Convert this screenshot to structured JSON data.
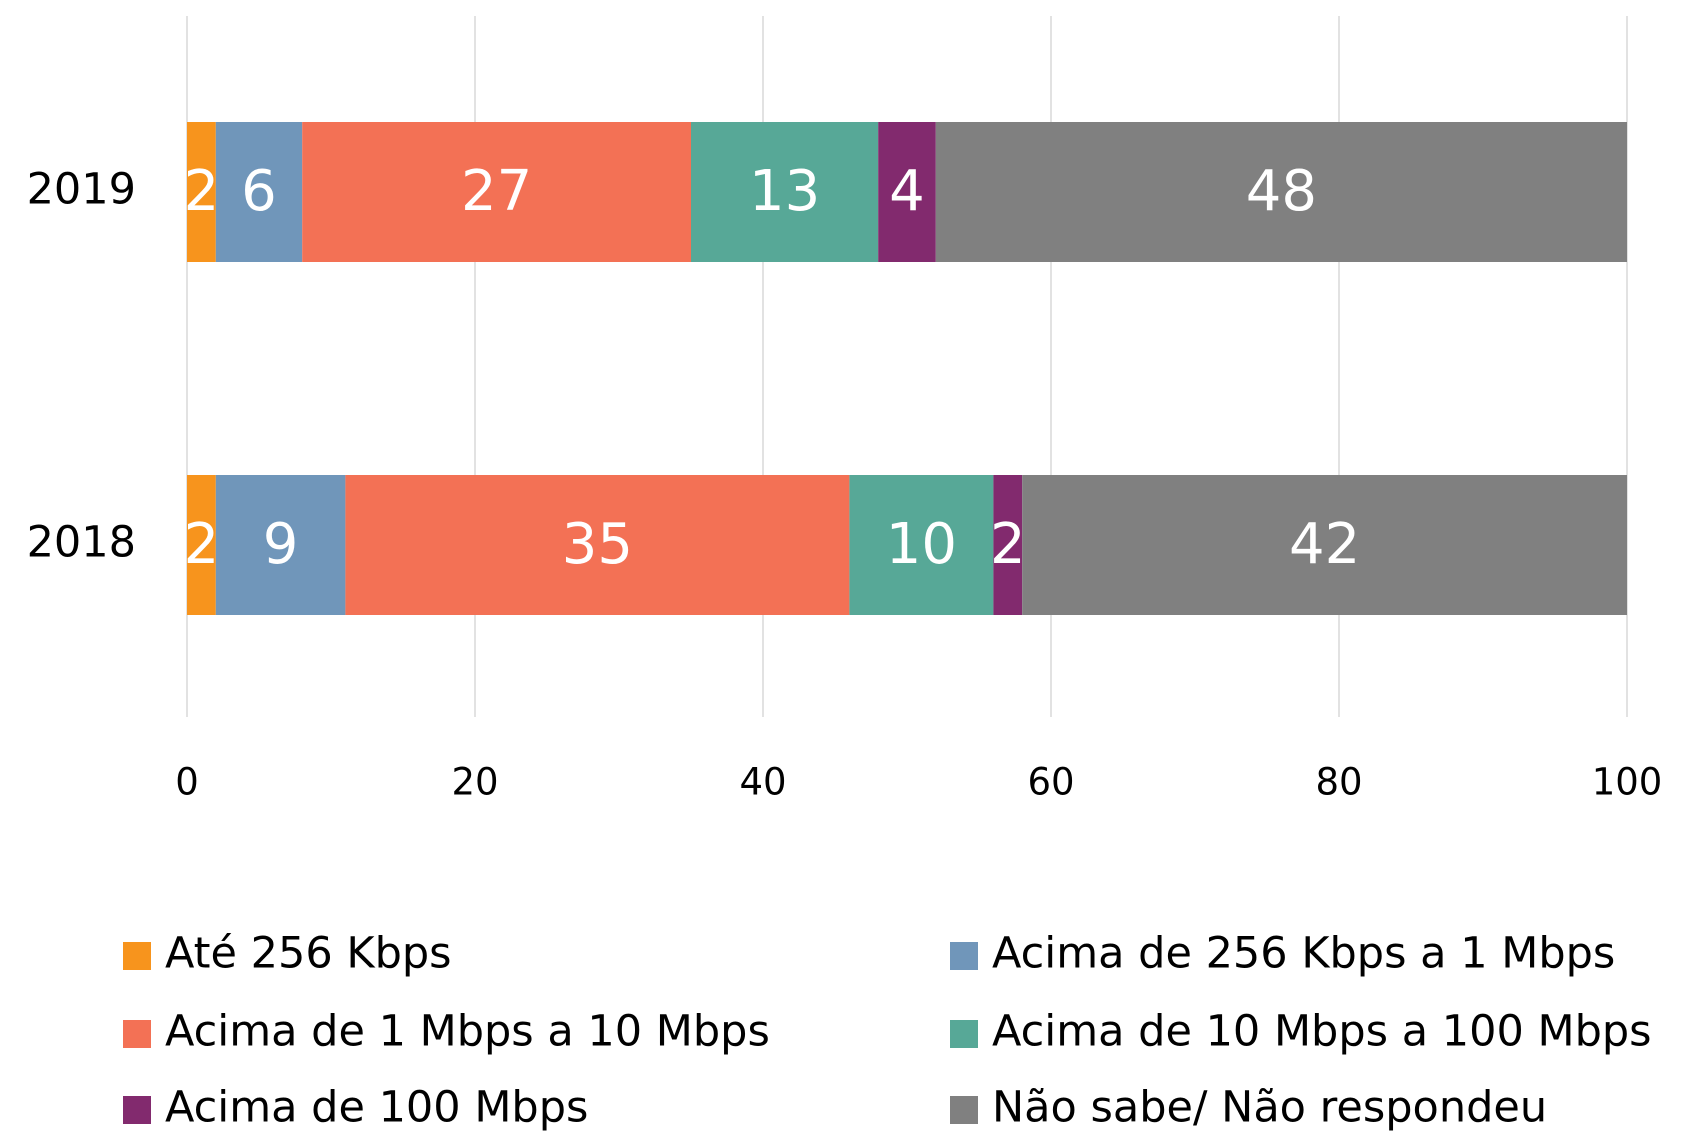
{
  "chart_data": {
    "type": "stacked-bar-horizontal",
    "categories": [
      "2019",
      "2018"
    ],
    "series": [
      {
        "name": "Até 256 Kbps",
        "color": "#F7941D",
        "values": [
          2,
          2
        ]
      },
      {
        "name": "Acima de 256 Kbps a 1 Mbps",
        "color": "#7096BA",
        "values": [
          6,
          9
        ]
      },
      {
        "name": "Acima de 1 Mbps a 10 Mbps",
        "color": "#F37155",
        "values": [
          27,
          35
        ]
      },
      {
        "name": "Acima de 10 Mbps a 100 Mbps",
        "color": "#57A897",
        "values": [
          13,
          10
        ]
      },
      {
        "name": "Acima de 100 Mbps",
        "color": "#822A6E",
        "values": [
          4,
          2
        ]
      },
      {
        "name": "Não sabe/ Não respondeu",
        "color": "#808080",
        "values": [
          48,
          42
        ]
      }
    ],
    "xlim": [
      0,
      100
    ],
    "xticks": [
      0,
      20,
      40,
      60,
      80,
      100
    ],
    "grid": true,
    "legend": "bottom"
  }
}
